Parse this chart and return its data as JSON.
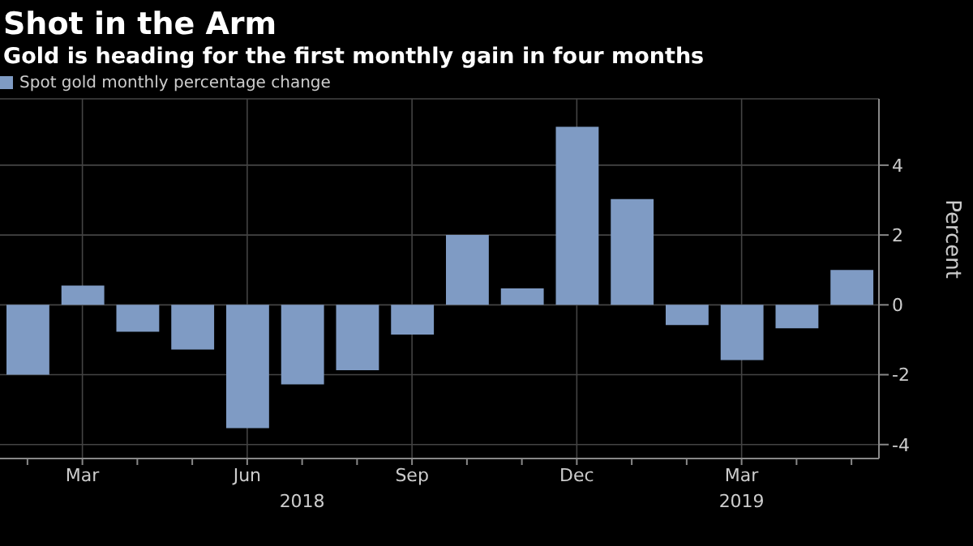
{
  "chart_data": {
    "type": "bar",
    "title": "Shot in the Arm",
    "subtitle": "Gold is heading for the first monthly gain in four months",
    "categories": [
      null,
      "Mar",
      null,
      null,
      "Jun",
      null,
      null,
      "Sep",
      null,
      null,
      "Dec",
      null,
      null,
      "Mar",
      null,
      null
    ],
    "series": [
      {
        "name": "Spot gold monthly percentage change",
        "color": "#7f9bc4",
        "values": [
          -2.0,
          0.55,
          -0.77,
          -1.28,
          -3.53,
          -2.28,
          -1.87,
          -0.85,
          2.0,
          0.47,
          5.1,
          3.03,
          -0.58,
          -1.58,
          -0.67,
          1.0
        ]
      }
    ],
    "ylabel": "Percent",
    "ylim": [
      -4.4,
      5.9
    ],
    "yticks": [
      -4,
      -2,
      0,
      2,
      4
    ],
    "grid": true,
    "legend": "top left",
    "annotations": [
      "2018",
      "2019"
    ]
  }
}
